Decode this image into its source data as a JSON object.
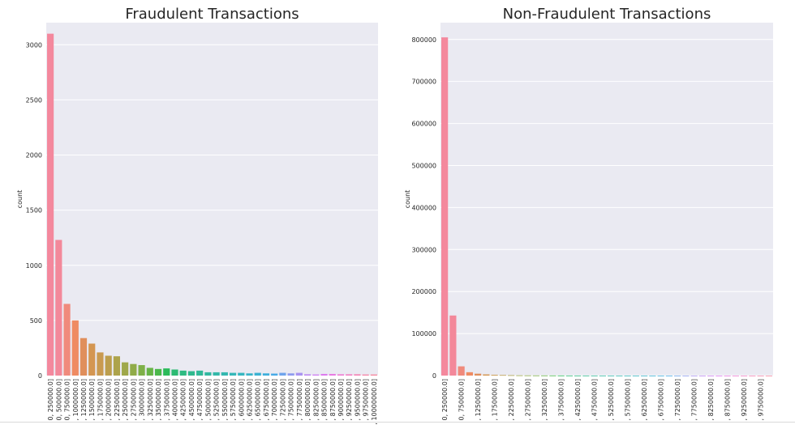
{
  "chart_data": [
    {
      "type": "bar",
      "title": "Fraudulent Transactions",
      "xlabel": "",
      "ylabel": "count",
      "ylim": [
        0,
        3200
      ],
      "yticks": [
        0,
        500,
        1000,
        1500,
        2000,
        2500,
        3000
      ],
      "grid": true,
      "categories": [
        "0, 250000.0]",
        "0, 500000.0]",
        "0, 750000.0]",
        ", 1000000.0]",
        ", 1250000.0]",
        ", 1500000.0]",
        ", 1750000.0]",
        ", 2000000.0]",
        ", 2250000.0]",
        ", 2500000.0]",
        ", 2750000.0]",
        ", 3000000.0]",
        ", 3250000.0]",
        ", 3500000.0]",
        ", 3750000.0]",
        ", 4000000.0]",
        ", 4250000.0]",
        ", 4500000.0]",
        ", 4750000.0]",
        ", 5000000.0]",
        ", 5250000.0]",
        ", 5500000.0]",
        ", 5750000.0]",
        ", 6000000.0]",
        ", 6250000.0]",
        ", 6500000.0]",
        ", 6750000.0]",
        ", 7000000.0]",
        ", 7250000.0]",
        ", 7500000.0]",
        ", 7750000.0]",
        ", 8000000.0]",
        ", 8250000.0]",
        ", 8500000.0]",
        ", 8750000.0]",
        ", 9000000.0]",
        ", 9250000.0]",
        ", 9500000.0]",
        ", 9750000.0]",
        ", 10000000.0]"
      ],
      "values": [
        3100,
        1230,
        650,
        500,
        340,
        290,
        210,
        180,
        175,
        120,
        105,
        95,
        70,
        60,
        65,
        55,
        45,
        40,
        45,
        30,
        30,
        30,
        25,
        25,
        20,
        25,
        20,
        18,
        25,
        20,
        25,
        12,
        10,
        15,
        15,
        12,
        12,
        12,
        10,
        10
      ],
      "tick_labels": [
        "0, 250000.0]",
        "0, 500000.0]",
        "0, 750000.0]",
        ", 1000000.0]",
        ", 1250000.0]",
        ", 1500000.0]",
        ", 1750000.0]",
        ", 2000000.0]",
        ", 2250000.0]",
        ", 2500000.0]",
        ", 2750000.0]",
        ", 3000000.0]",
        ", 3250000.0]",
        ", 3500000.0]",
        ", 3750000.0]",
        ", 4000000.0]",
        ", 4250000.0]",
        ", 4500000.0]",
        ", 4750000.0]",
        ", 5000000.0]",
        ", 5250000.0]",
        ", 5500000.0]",
        ", 5750000.0]",
        ", 6000000.0]",
        ", 6250000.0]",
        ", 6500000.0]",
        ", 6750000.0]",
        ", 7000000.0]",
        ", 7250000.0]",
        ", 7500000.0]",
        ", 7750000.0]",
        ", 8000000.0]",
        ", 8250000.0]",
        ", 8500000.0]",
        ", 8750000.0]",
        ", 9000000.0]",
        ", 9250000.0]",
        ", 9500000.0]",
        ", 9750000.0]",
        ", 10000000.0]"
      ],
      "colors": [
        "#f4889d",
        "#f3889a",
        "#f08a7c",
        "#ef8b62",
        "#e08f5c",
        "#d49651",
        "#c99a50",
        "#bc9e4d",
        "#ada34b",
        "#9fa84a",
        "#90ab48",
        "#7eb048",
        "#67b447",
        "#4bb84b",
        "#2bbb5a",
        "#2cbb72",
        "#2ebb82",
        "#30ba8e",
        "#31ba98",
        "#32b9a1",
        "#33b8a9",
        "#34b8b0",
        "#35b7b8",
        "#36b6c0",
        "#38b4c9",
        "#3ab2d2",
        "#3eafdc",
        "#48abe7",
        "#6fa4ec",
        "#8e9bef",
        "#a993f1",
        "#bd8af2",
        "#cf80f2",
        "#dd7bee",
        "#e77be2",
        "#ee7dd3",
        "#f280c3",
        "#f483b4",
        "#f586a8",
        "#f5889f"
      ]
    },
    {
      "type": "bar",
      "title": "Non-Fraudulent Transactions",
      "xlabel": "",
      "ylabel": "count",
      "ylim": [
        0,
        840000
      ],
      "yticks": [
        0,
        100000,
        200000,
        300000,
        400000,
        500000,
        600000,
        700000,
        800000
      ],
      "grid": true,
      "categories": [
        "0, 250000.0]",
        "0, 500000.0]",
        "0, 750000.0]",
        ", 1000000.0]",
        ", 1250000.0]",
        ", 1500000.0]",
        ", 1750000.0]",
        ", 2000000.0]",
        ", 2250000.0]",
        ", 2500000.0]",
        ", 2750000.0]",
        ", 3000000.0]",
        ", 3250000.0]",
        ", 3500000.0]",
        ", 3750000.0]",
        ", 4000000.0]",
        ", 4250000.0]",
        ", 4500000.0]",
        ", 4750000.0]",
        ", 5000000.0]",
        ", 5250000.0]",
        ", 5500000.0]",
        ", 5750000.0]",
        ", 6000000.0]",
        ", 6250000.0]",
        ", 6500000.0]",
        ", 6750000.0]",
        ", 7000000.0]",
        ", 7250000.0]",
        ", 7500000.0]",
        ", 7750000.0]",
        ", 8000000.0]",
        ", 8250000.0]",
        ", 8500000.0]",
        ", 8750000.0]",
        ", 9000000.0]",
        ", 9250000.0]",
        ", 9500000.0]",
        ", 9750000.0]",
        ", 10000000.0]"
      ],
      "values": [
        805000,
        143000,
        22000,
        8000,
        4500,
        2800,
        1800,
        1300,
        900,
        600,
        450,
        350,
        300,
        250,
        200,
        150,
        130,
        110,
        90,
        80,
        70,
        60,
        50,
        45,
        40,
        35,
        30,
        28,
        25,
        22,
        20,
        18,
        16,
        14,
        12,
        10,
        9,
        8,
        7,
        6
      ],
      "tick_labels": [
        "0, 250000.0]",
        "0, 750000.0]",
        ", 1250000.0]",
        ", 1750000.0]",
        ", 2250000.0]",
        ", 2750000.0]",
        ", 3250000.0]",
        ", 3750000.0]",
        ", 4250000.0]",
        ", 4750000.0]",
        ", 5250000.0]",
        ", 5750000.0]",
        ", 6250000.0]",
        ", 6750000.0]",
        ", 7250000.0]",
        ", 7750000.0]",
        ", 8250000.0]",
        ", 8750000.0]",
        ", 9250000.0]",
        ", 9750000.0]"
      ],
      "tick_every": 2,
      "colors": [
        "#f4889d",
        "#f3889a",
        "#f08a7c",
        "#ef8b62",
        "#e08f5c",
        "#d49651",
        "#c99a50",
        "#bc9e4d",
        "#ada34b",
        "#9fa84a",
        "#90ab48",
        "#7eb048",
        "#67b447",
        "#4bb84b",
        "#2bbb5a",
        "#2cbb72",
        "#2ebb82",
        "#30ba8e",
        "#31ba98",
        "#32b9a1",
        "#33b8a9",
        "#34b8b0",
        "#35b7b8",
        "#36b6c0",
        "#38b4c9",
        "#3ab2d2",
        "#3eafdc",
        "#48abe7",
        "#6fa4ec",
        "#8e9bef",
        "#a993f1",
        "#bd8af2",
        "#cf80f2",
        "#dd7bee",
        "#e77be2",
        "#ee7dd3",
        "#f280c3",
        "#f483b4",
        "#f586a8",
        "#f5889f"
      ]
    }
  ],
  "style": {
    "plot_background": "#eaeaf2",
    "grid_color": "#ffffff",
    "text_color": "#262626"
  }
}
